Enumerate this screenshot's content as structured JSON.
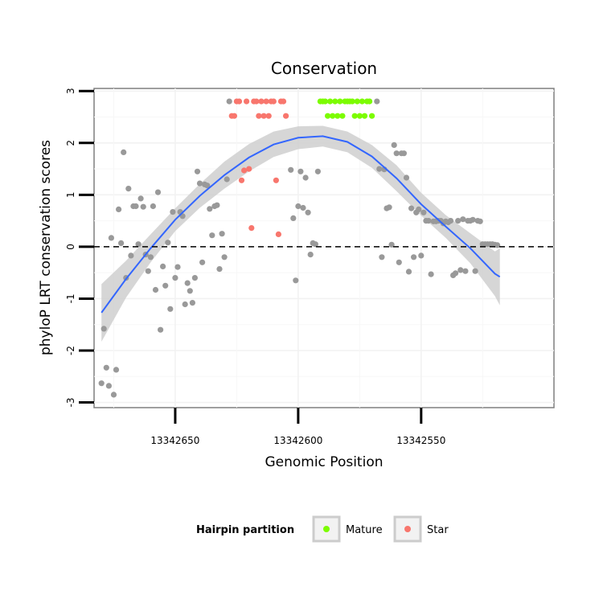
{
  "chart_data": {
    "type": "scatter",
    "title": "Conservation",
    "xlabel": "Genomic Position",
    "ylabel": "phyloP LRT conservation scores",
    "x_reversed": true,
    "xlim": [
      13342683,
      13342496
    ],
    "ylim": [
      -3.1,
      3.05
    ],
    "x_ticks": [
      13342650,
      13342600,
      13342550
    ],
    "x_tick_labels": [
      "13342650",
      "13342600",
      "13342550"
    ],
    "y_ticks": [
      -3,
      -2,
      -1,
      0,
      1,
      2,
      3
    ],
    "y_tick_labels": [
      "-3",
      "-2",
      "-1",
      "0",
      "1",
      "2",
      "3"
    ],
    "reference_line": {
      "y": 0,
      "style": "dashed"
    },
    "grid": true,
    "legend": {
      "title": "Hairpin partition",
      "position": "bottom",
      "entries": [
        {
          "label": "Mature",
          "color": "#7CFC00"
        },
        {
          "label": "Star",
          "color": "#F8766D"
        }
      ]
    },
    "colors": {
      "other": "#999999",
      "smooth": "#3366FF",
      "ribbon": "#CCCCCC"
    },
    "series": [
      {
        "group": "other",
        "points": [
          [
            13342680,
            -2.63
          ],
          [
            13342679,
            -1.58
          ],
          [
            13342678,
            -2.33
          ],
          [
            13342677,
            -2.68
          ],
          [
            13342676,
            0.17
          ],
          [
            13342675,
            -2.85
          ],
          [
            13342674,
            -2.37
          ],
          [
            13342673,
            0.72
          ],
          [
            13342672,
            0.07
          ],
          [
            13342671,
            1.82
          ],
          [
            13342670,
            -0.6
          ],
          [
            13342669,
            1.12
          ],
          [
            13342668,
            -0.17
          ],
          [
            13342667,
            0.78
          ],
          [
            13342666,
            0.78
          ],
          [
            13342665,
            0.05
          ],
          [
            13342664,
            0.93
          ],
          [
            13342663,
            0.77
          ],
          [
            13342662,
            -0.15
          ],
          [
            13342661,
            -0.47
          ],
          [
            13342660,
            -0.2
          ],
          [
            13342659,
            0.78
          ],
          [
            13342658,
            -0.83
          ],
          [
            13342657,
            1.05
          ],
          [
            13342656,
            -1.6
          ],
          [
            13342655,
            -0.38
          ],
          [
            13342654,
            -0.75
          ],
          [
            13342653,
            0.08
          ],
          [
            13342652,
            -1.2
          ],
          [
            13342651,
            0.67
          ],
          [
            13342650,
            -0.6
          ],
          [
            13342649,
            -0.39
          ],
          [
            13342648,
            0.67
          ],
          [
            13342647,
            0.59
          ],
          [
            13342646,
            -1.11
          ],
          [
            13342645,
            -0.7
          ],
          [
            13342644,
            -0.85
          ],
          [
            13342643,
            -1.08
          ],
          [
            13342642,
            -0.6
          ],
          [
            13342641,
            1.45
          ],
          [
            13342640,
            1.22
          ],
          [
            13342639,
            -0.3
          ],
          [
            13342638,
            1.2
          ],
          [
            13342637,
            1.18
          ],
          [
            13342636,
            0.73
          ],
          [
            13342635,
            0.22
          ],
          [
            13342634,
            0.78
          ],
          [
            13342633,
            0.8
          ],
          [
            13342632,
            -0.43
          ],
          [
            13342631,
            0.25
          ],
          [
            13342630,
            -0.2
          ],
          [
            13342629,
            1.3
          ],
          [
            13342628,
            2.8
          ],
          [
            13342603,
            1.48
          ],
          [
            13342602,
            0.55
          ],
          [
            13342601,
            -0.65
          ],
          [
            13342600,
            0.78
          ],
          [
            13342599,
            1.45
          ],
          [
            13342598,
            0.75
          ],
          [
            13342597,
            1.33
          ],
          [
            13342596,
            0.66
          ],
          [
            13342595,
            -0.15
          ],
          [
            13342594,
            0.07
          ],
          [
            13342593,
            0.05
          ],
          [
            13342592,
            1.45
          ],
          [
            13342568,
            2.8
          ],
          [
            13342567,
            1.5
          ],
          [
            13342566,
            -0.2
          ],
          [
            13342565,
            1.49
          ],
          [
            13342564,
            0.74
          ],
          [
            13342563,
            0.76
          ],
          [
            13342562,
            0.04
          ],
          [
            13342561,
            1.96
          ],
          [
            13342560,
            1.8
          ],
          [
            13342559,
            -0.3
          ],
          [
            13342558,
            1.8
          ],
          [
            13342557,
            1.8
          ],
          [
            13342556,
            1.33
          ],
          [
            13342555,
            -0.48
          ],
          [
            13342554,
            0.74
          ],
          [
            13342553,
            -0.2
          ],
          [
            13342552,
            0.66
          ],
          [
            13342551,
            0.72
          ],
          [
            13342550,
            -0.17
          ],
          [
            13342549,
            0.66
          ],
          [
            13342548,
            0.5
          ],
          [
            13342547,
            0.5
          ],
          [
            13342546,
            -0.53
          ],
          [
            13342545,
            0.49
          ],
          [
            13342544,
            0.49
          ],
          [
            13342543,
            0.5
          ],
          [
            13342542,
            0.5
          ],
          [
            13342541,
            0.45
          ],
          [
            13342540,
            0.49
          ],
          [
            13342539,
            0.47
          ],
          [
            13342538,
            0.5
          ],
          [
            13342537,
            -0.55
          ],
          [
            13342536,
            -0.51
          ],
          [
            13342535,
            0.5
          ],
          [
            13342534,
            -0.45
          ],
          [
            13342533,
            0.53
          ],
          [
            13342532,
            -0.47
          ],
          [
            13342531,
            0.5
          ],
          [
            13342530,
            0.5
          ],
          [
            13342529,
            0.52
          ],
          [
            13342528,
            -0.47
          ],
          [
            13342527,
            0.5
          ],
          [
            13342526,
            0.49
          ],
          [
            13342525,
            0.05
          ],
          [
            13342524,
            0.05
          ],
          [
            13342523,
            0.05
          ],
          [
            13342522,
            0.05
          ],
          [
            13342521,
            0.05
          ],
          [
            13342520,
            0.04
          ],
          [
            13342519,
            0.03
          ]
        ]
      },
      {
        "group": "Star",
        "points": [
          [
            13342627,
            2.52
          ],
          [
            13342626,
            2.52
          ],
          [
            13342625,
            2.8
          ],
          [
            13342624,
            2.8
          ],
          [
            13342623,
            1.28
          ],
          [
            13342622,
            1.47
          ],
          [
            13342621,
            2.8
          ],
          [
            13342620,
            1.5
          ],
          [
            13342619,
            0.36
          ],
          [
            13342618,
            2.8
          ],
          [
            13342617,
            2.8
          ],
          [
            13342616,
            2.52
          ],
          [
            13342615,
            2.8
          ],
          [
            13342614,
            2.52
          ],
          [
            13342613,
            2.8
          ],
          [
            13342612,
            2.52
          ],
          [
            13342611,
            2.8
          ],
          [
            13342610,
            2.8
          ],
          [
            13342609,
            1.28
          ],
          [
            13342608,
            0.24
          ],
          [
            13342607,
            2.8
          ],
          [
            13342606,
            2.8
          ],
          [
            13342605,
            2.52
          ]
        ]
      },
      {
        "group": "Mature",
        "points": [
          [
            13342591,
            2.8
          ],
          [
            13342590,
            2.8
          ],
          [
            13342589,
            2.8
          ],
          [
            13342588,
            2.52
          ],
          [
            13342587,
            2.8
          ],
          [
            13342586,
            2.52
          ],
          [
            13342585,
            2.8
          ],
          [
            13342584,
            2.52
          ],
          [
            13342583,
            2.8
          ],
          [
            13342582,
            2.52
          ],
          [
            13342581,
            2.8
          ],
          [
            13342580,
            2.8
          ],
          [
            13342579,
            2.8
          ],
          [
            13342578,
            2.8
          ],
          [
            13342577,
            2.52
          ],
          [
            13342576,
            2.8
          ],
          [
            13342575,
            2.52
          ],
          [
            13342574,
            2.8
          ],
          [
            13342573,
            2.52
          ],
          [
            13342572,
            2.8
          ],
          [
            13342571,
            2.8
          ],
          [
            13342570,
            2.52
          ]
        ]
      }
    ],
    "smooth": [
      [
        13342680,
        -1.27
      ],
      [
        13342670,
        -0.62
      ],
      [
        13342660,
        -0.03
      ],
      [
        13342650,
        0.52
      ],
      [
        13342640,
        0.98
      ],
      [
        13342630,
        1.38
      ],
      [
        13342620,
        1.72
      ],
      [
        13342610,
        1.97
      ],
      [
        13342600,
        2.1
      ],
      [
        13342590,
        2.13
      ],
      [
        13342580,
        2.02
      ],
      [
        13342570,
        1.74
      ],
      [
        13342560,
        1.32
      ],
      [
        13342550,
        0.82
      ],
      [
        13342540,
        0.39
      ],
      [
        13342530,
        -0.03
      ],
      [
        13342520,
        -0.52
      ],
      [
        13342518,
        -0.58
      ]
    ],
    "ribbon": [
      [
        13342680,
        -1.83,
        -0.72
      ],
      [
        13342670,
        -0.98,
        -0.27
      ],
      [
        13342660,
        -0.3,
        0.24
      ],
      [
        13342650,
        0.3,
        0.74
      ],
      [
        13342640,
        0.75,
        1.21
      ],
      [
        13342630,
        1.12,
        1.64
      ],
      [
        13342620,
        1.45,
        1.98
      ],
      [
        13342610,
        1.73,
        2.22
      ],
      [
        13342600,
        1.88,
        2.32
      ],
      [
        13342590,
        1.93,
        2.33
      ],
      [
        13342580,
        1.82,
        2.22
      ],
      [
        13342570,
        1.52,
        1.96
      ],
      [
        13342560,
        1.07,
        1.57
      ],
      [
        13342550,
        0.6,
        1.04
      ],
      [
        13342540,
        0.17,
        0.61
      ],
      [
        13342530,
        -0.32,
        0.26
      ],
      [
        13342520,
        -0.95,
        -0.09
      ],
      [
        13342518,
        -1.13,
        -0.03
      ]
    ]
  }
}
